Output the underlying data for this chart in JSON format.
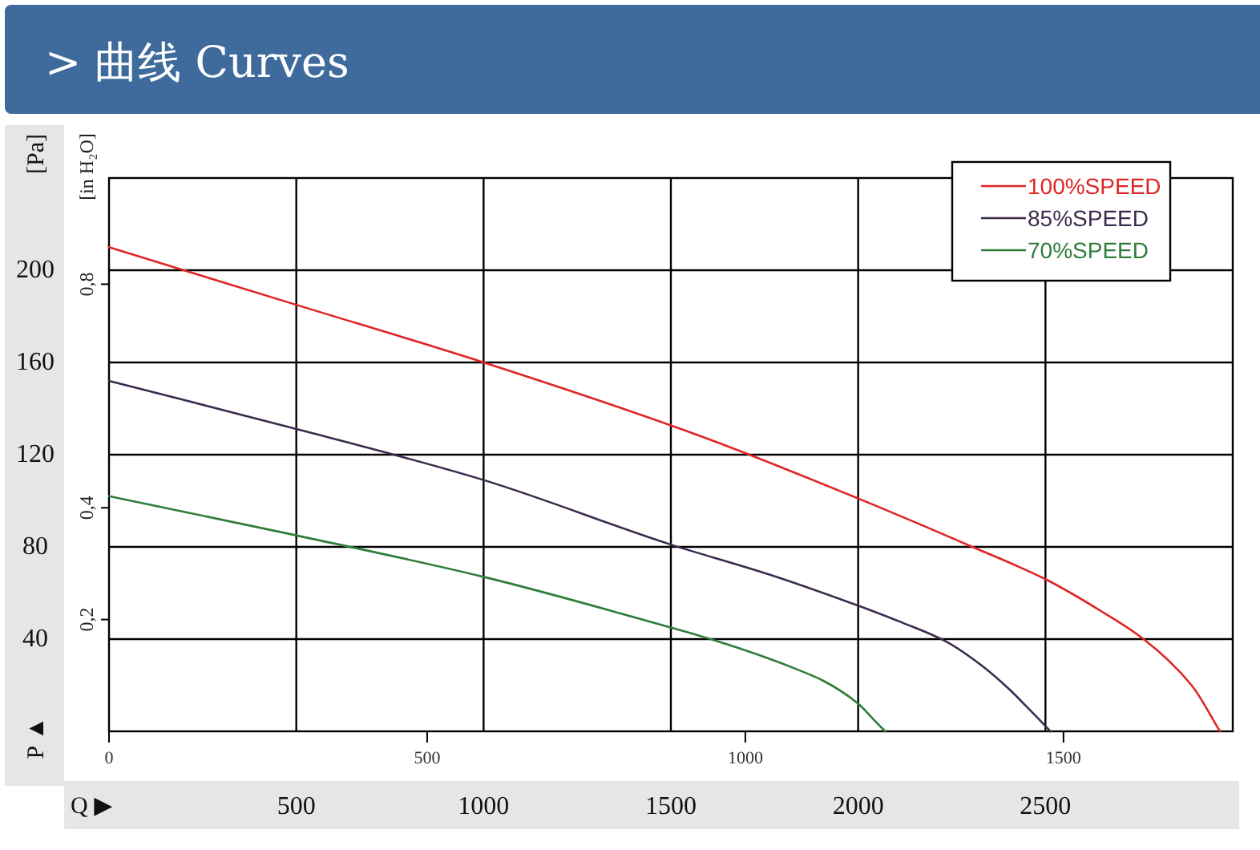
{
  "chart_data": {
    "type": "line",
    "title": "> 曲线 Curves",
    "xlabel": "Q ▶",
    "ylabel": "[Pa]",
    "y2label": "[in H₂O]",
    "annotations": [
      "P ▲"
    ],
    "xlim": [
      0,
      3000
    ],
    "xticks": [
      500,
      1000,
      1500,
      2000,
      2500
    ],
    "x2lim": [
      0,
      1766
    ],
    "x2ticks": [
      0,
      500,
      1000,
      1500
    ],
    "ylim": [
      0,
      240
    ],
    "yticks": [
      40,
      80,
      120,
      160,
      200
    ],
    "y2lim": [
      0,
      0.99
    ],
    "y2ticks": [
      {
        "value": 0.2,
        "label": "0,2"
      },
      {
        "value": 0.4,
        "label": "0,4"
      },
      {
        "value": 0.8,
        "label": "0,8"
      }
    ],
    "grid": true,
    "legend": "top right",
    "series": [
      {
        "name": "100%SPEED",
        "color": "#e02424",
        "x": [
          0,
          500,
          1000,
          1580,
          2000,
          2305,
          2500,
          2650,
          2762,
          2890,
          2966
        ],
        "values": [
          210,
          185,
          160,
          128,
          101,
          80,
          66,
          52,
          40,
          20,
          0
        ]
      },
      {
        "name": "85%SPEED",
        "color": "#3b2a4c",
        "x": [
          0,
          575,
          1000,
          1500,
          1763,
          2000,
          2120,
          2234,
          2334,
          2405,
          2448,
          2484,
          2513
        ],
        "values": [
          152,
          128,
          109,
          81,
          68,
          54.5,
          47,
          39,
          28,
          18,
          11,
          5,
          0
        ]
      },
      {
        "name": "70%SPEED",
        "color": "#2e7d3a",
        "x": [
          0,
          500,
          1000,
          1500,
          1606,
          1763,
          1835,
          1906,
          2000,
          2042,
          2072
        ],
        "values": [
          102,
          85,
          67,
          45,
          40,
          31.5,
          27,
          22,
          12,
          5,
          0
        ]
      }
    ]
  }
}
